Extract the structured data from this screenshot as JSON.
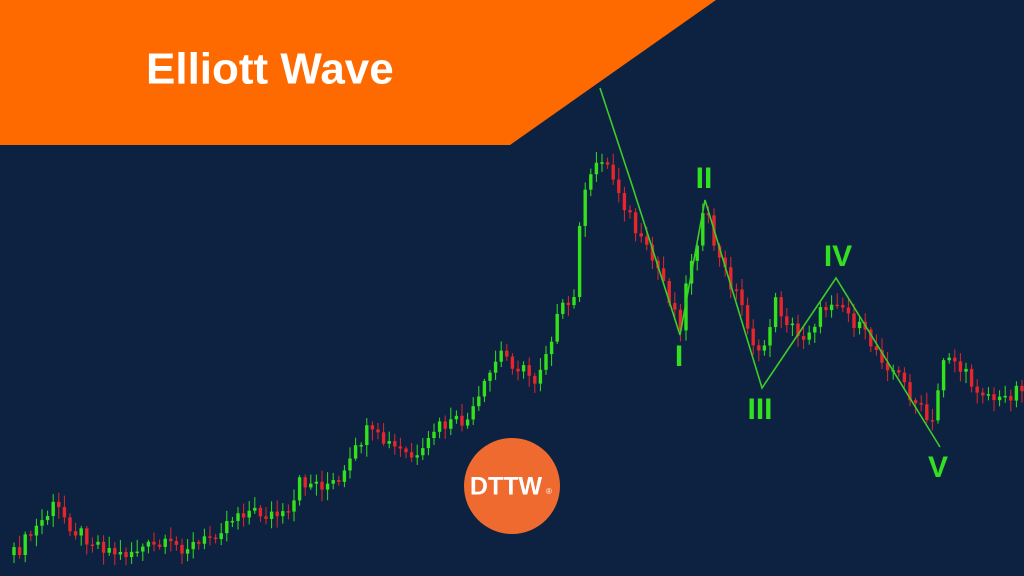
{
  "banner": {
    "title": "Elliott Wave"
  },
  "waves": [
    {
      "label": "I"
    },
    {
      "label": "II"
    },
    {
      "label": "III"
    },
    {
      "label": "IV"
    },
    {
      "label": "V"
    }
  ],
  "logo": {
    "text": "DTTW",
    "mark": "®"
  }
}
